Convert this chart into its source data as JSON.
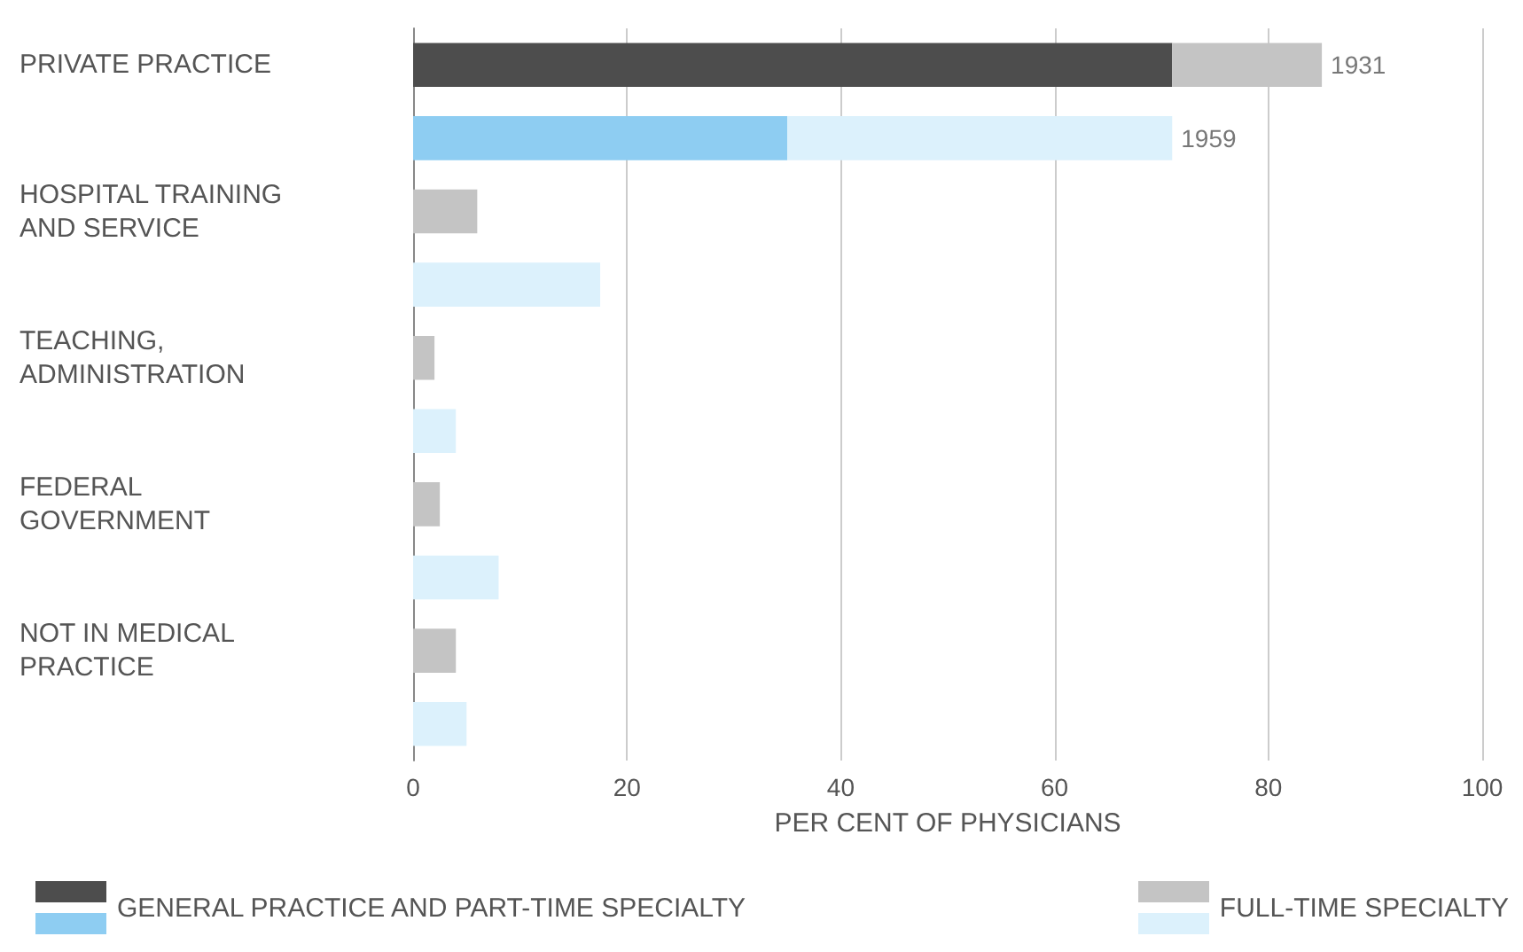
{
  "chart_data": {
    "type": "bar",
    "orientation": "horizontal",
    "stacked": true,
    "xlabel": "PER CENT OF PHYSICIANS",
    "categories": [
      "PRIVATE PRACTICE",
      null,
      "HOSPITAL TRAINING\nAND SERVICE",
      null,
      "TEACHING,\nADMINISTRATION",
      null,
      "FEDERAL\nGOVERNMENT",
      null,
      "NOT IN MEDICAL\nPRACTICE",
      null
    ],
    "series": [
      {
        "name": "GENERAL PRACTICE AND PART-TIME SPECIALTY",
        "colors": [
          "#4d4d4d",
          "#8ecdf2",
          "#4d4d4d",
          "#8ecdf2",
          "#4d4d4d",
          "#8ecdf2",
          "#4d4d4d",
          "#8ecdf2",
          "#4d4d4d",
          "#8ecdf2"
        ],
        "values": [
          71,
          35,
          0,
          0,
          0,
          0,
          0,
          0,
          0,
          0
        ]
      },
      {
        "name": "FULL-TIME SPECIALTY",
        "colors": [
          "#c4c4c4",
          "#dcf1fc",
          "#c4c4c4",
          "#dcf1fc",
          "#c4c4c4",
          "#dcf1fc",
          "#c4c4c4",
          "#dcf1fc",
          "#c4c4c4",
          "#dcf1fc"
        ],
        "values": [
          14,
          36,
          6,
          17.5,
          2,
          4,
          2.5,
          8,
          4,
          5
        ]
      }
    ],
    "annotations": [
      {
        "text": "1931",
        "x": 85,
        "y": "PRIVATE PRACTICE"
      },
      {
        "text": "1959",
        "x": 71
      }
    ],
    "xlim": [
      0,
      100
    ],
    "xticks": [
      0,
      20,
      40,
      60,
      80,
      100
    ],
    "grid": "x",
    "legend": "bottom"
  }
}
